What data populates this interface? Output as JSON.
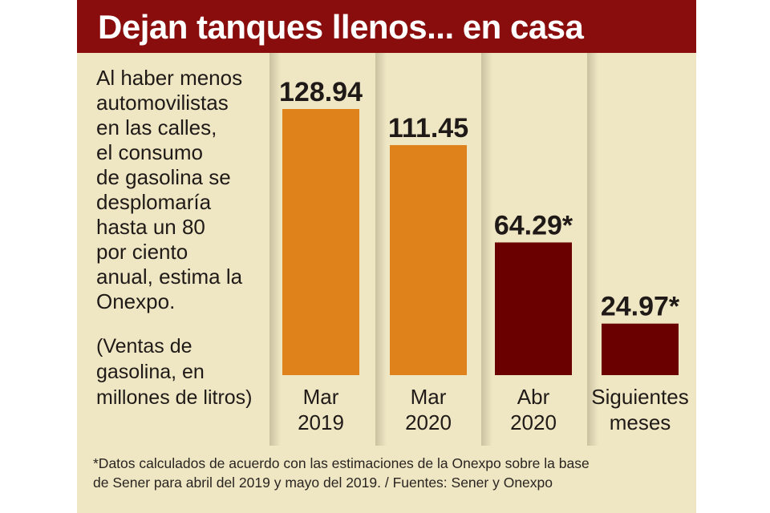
{
  "title": "Dejan tanques llenos... en casa",
  "description": "Al haber menos automovilistas en las calles, el consumo de gasolina se desplomaría hasta un 80 por ciento anual, estima la Onexpo.",
  "description_lines": [
    "Al haber menos",
    "automovilistas",
    "en las calles,",
    "el consumo",
    "de gasolina se",
    "desplomaría",
    "hasta un 80",
    "por ciento",
    "anual, estima la",
    "Onexpo."
  ],
  "unit_note_lines": [
    "(Ventas de",
    "gasolina, en",
    "millones de litros)"
  ],
  "footnote_lines": [
    "*Datos calculados de acuerdo con las estimaciones de la Onexpo sobre la base",
    "de Sener para abril del 2019 y mayo del 2019. /  Fuentes: Sener y Onexpo"
  ],
  "colors": {
    "title_bg": "#8a0d0d",
    "card_bg": "#efe7c4",
    "actual": "#e0821c",
    "estimate": "#6b0000"
  },
  "chart_data": {
    "type": "bar",
    "title": "Dejan tanques llenos... en casa",
    "ylabel": "",
    "xlabel": "",
    "categories": [
      [
        "Mar",
        "2019"
      ],
      [
        "Mar",
        "2020"
      ],
      [
        "Abr",
        "2020"
      ],
      [
        "Siguientes",
        "meses"
      ]
    ],
    "values": [
      128.94,
      111.45,
      64.29,
      24.97
    ],
    "labels": [
      "128.94",
      "111.45",
      "64.29*",
      "24.97*"
    ],
    "estimated": [
      false,
      false,
      true,
      true
    ],
    "ylim": [
      0,
      140
    ],
    "grid": false,
    "legend": "none"
  }
}
